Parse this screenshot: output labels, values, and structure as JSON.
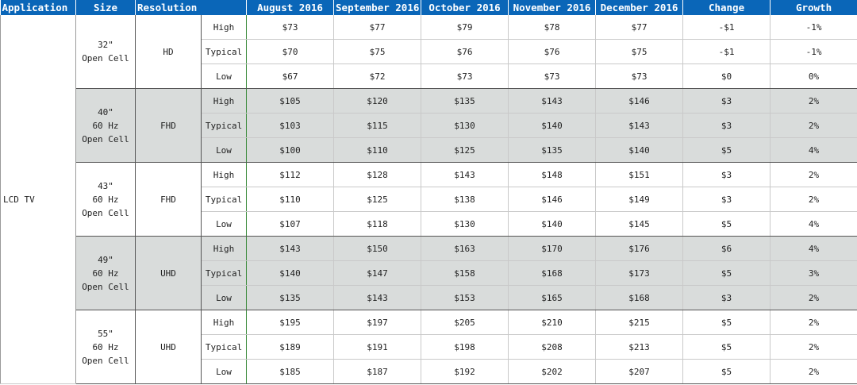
{
  "header": {
    "application": "Application",
    "size": "Size",
    "resolution": "Resolution",
    "aug": "August 2016",
    "sep": "September 2016",
    "oct": "October 2016",
    "nov": "November 2016",
    "dec": "December 2016",
    "change": "Change",
    "growth": "Growth"
  },
  "application": "LCD TV",
  "groups": [
    {
      "size": "32\"\nOpen Cell",
      "resolution": "HD",
      "rows": [
        {
          "level": "High",
          "aug": "$73",
          "sep": "$77",
          "oct": "$79",
          "nov": "$78",
          "dec": "$77",
          "change": "-$1",
          "growth": "-1%"
        },
        {
          "level": "Typical",
          "aug": "$70",
          "sep": "$75",
          "oct": "$76",
          "nov": "$76",
          "dec": "$75",
          "change": "-$1",
          "growth": "-1%"
        },
        {
          "level": "Low",
          "aug": "$67",
          "sep": "$72",
          "oct": "$73",
          "nov": "$73",
          "dec": "$73",
          "change": "$0",
          "growth": "0%"
        }
      ]
    },
    {
      "size": "40\"\n60 Hz\nOpen Cell",
      "resolution": "FHD",
      "rows": [
        {
          "level": "High",
          "aug": "$105",
          "sep": "$120",
          "oct": "$135",
          "nov": "$143",
          "dec": "$146",
          "change": "$3",
          "growth": "2%"
        },
        {
          "level": "Typical",
          "aug": "$103",
          "sep": "$115",
          "oct": "$130",
          "nov": "$140",
          "dec": "$143",
          "change": "$3",
          "growth": "2%"
        },
        {
          "level": "Low",
          "aug": "$100",
          "sep": "$110",
          "oct": "$125",
          "nov": "$135",
          "dec": "$140",
          "change": "$5",
          "growth": "4%"
        }
      ]
    },
    {
      "size": "43\"\n60 Hz\nOpen Cell",
      "resolution": "FHD",
      "rows": [
        {
          "level": "High",
          "aug": "$112",
          "sep": "$128",
          "oct": "$143",
          "nov": "$148",
          "dec": "$151",
          "change": "$3",
          "growth": "2%"
        },
        {
          "level": "Typical",
          "aug": "$110",
          "sep": "$125",
          "oct": "$138",
          "nov": "$146",
          "dec": "$149",
          "change": "$3",
          "growth": "2%"
        },
        {
          "level": "Low",
          "aug": "$107",
          "sep": "$118",
          "oct": "$130",
          "nov": "$140",
          "dec": "$145",
          "change": "$5",
          "growth": "4%"
        }
      ]
    },
    {
      "size": "49\"\n60 Hz\nOpen Cell",
      "resolution": "UHD",
      "rows": [
        {
          "level": "High",
          "aug": "$143",
          "sep": "$150",
          "oct": "$163",
          "nov": "$170",
          "dec": "$176",
          "change": "$6",
          "growth": "4%"
        },
        {
          "level": "Typical",
          "aug": "$140",
          "sep": "$147",
          "oct": "$158",
          "nov": "$168",
          "dec": "$173",
          "change": "$5",
          "growth": "3%"
        },
        {
          "level": "Low",
          "aug": "$135",
          "sep": "$143",
          "oct": "$153",
          "nov": "$165",
          "dec": "$168",
          "change": "$3",
          "growth": "2%"
        }
      ]
    },
    {
      "size": "55\"\n60 Hz\nOpen Cell",
      "resolution": "UHD",
      "rows": [
        {
          "level": "High",
          "aug": "$195",
          "sep": "$197",
          "oct": "$205",
          "nov": "$210",
          "dec": "$215",
          "change": "$5",
          "growth": "2%"
        },
        {
          "level": "Typical",
          "aug": "$189",
          "sep": "$191",
          "oct": "$198",
          "nov": "$208",
          "dec": "$213",
          "change": "$5",
          "growth": "2%"
        },
        {
          "level": "Low",
          "aug": "$185",
          "sep": "$187",
          "oct": "$192",
          "nov": "$202",
          "dec": "$207",
          "change": "$5",
          "growth": "2%"
        }
      ]
    }
  ]
}
